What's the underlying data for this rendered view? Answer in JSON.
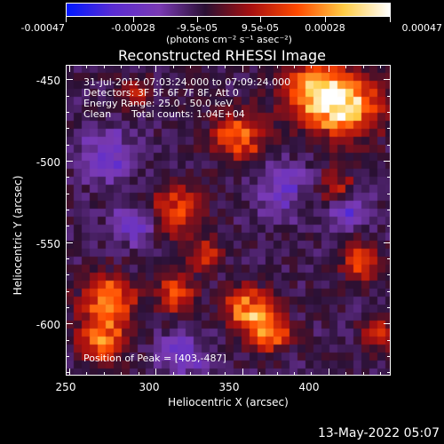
{
  "colorbar": {
    "tick_labels": [
      "-0.00047",
      "-0.00028",
      "-9.5e-05",
      "9.5e-05",
      "0.00028",
      "0.00047"
    ],
    "units_label": "(photons cm⁻² s⁻¹ asec⁻²)",
    "colormap": [
      "#0018ff",
      "#5a2cd2",
      "#7a3ab4",
      "#2a1033",
      "#a81010",
      "#ff4a00",
      "#ffcc44",
      "#ffffff"
    ]
  },
  "title": "Reconstructed RHESSI Image",
  "annotations": {
    "time_range": "31-Jul-2012 07:03:24.000 to 07:09:24.000",
    "detectors": "Detectors: 3F 5F 6F 7F 8F, Att 0",
    "energy_range": "Energy Range: 25.0 - 50.0 keV",
    "method": "Clean",
    "total_counts": "Total counts: 1.04E+04",
    "peak_position": "Position of Peak = [403,-487]"
  },
  "axes": {
    "xlabel": "Heliocentric X (arcsec)",
    "ylabel": "Heliocentric Y (arcsec)",
    "x_ticks": [
      "250",
      "300",
      "350",
      "400"
    ],
    "y_ticks": [
      "-450",
      "-500",
      "-550",
      "-600"
    ],
    "xlim": [
      248,
      436
    ],
    "ylim": [
      -632,
      -441
    ]
  },
  "footer_date": "13-May-2022 05:07"
}
